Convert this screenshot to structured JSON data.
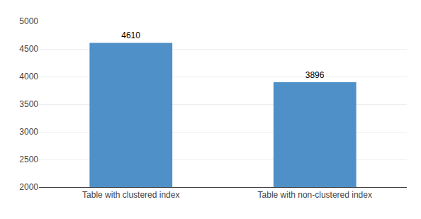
{
  "chart_data": {
    "type": "bar",
    "categories": [
      "Table with clustered index",
      "Table with non-clustered index"
    ],
    "values": [
      4610,
      3896
    ],
    "color": "#4F90C8",
    "ylim": [
      2000,
      5000
    ],
    "yticks": [
      2000,
      2500,
      3000,
      3500,
      4000,
      4500,
      5000
    ],
    "grid": true,
    "data_labels": true
  }
}
